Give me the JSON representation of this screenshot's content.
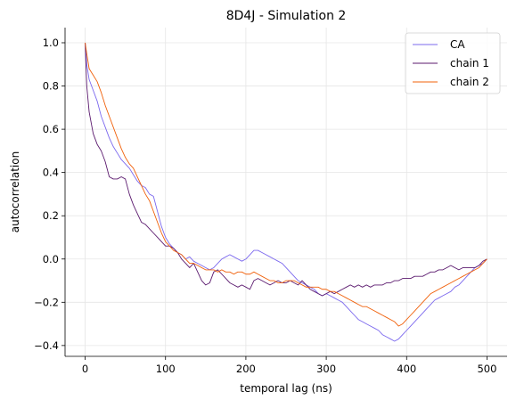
{
  "chart_data": {
    "type": "line",
    "title": "8D4J - Simulation 2",
    "xlabel": "temporal lag (ns)",
    "ylabel": "autocorrelation",
    "xlim": [
      -25,
      525
    ],
    "ylim": [
      -0.45,
      1.07
    ],
    "xticks": [
      0,
      100,
      200,
      300,
      400,
      500
    ],
    "yticks": [
      -0.4,
      -0.2,
      0.0,
      0.2,
      0.4,
      0.6,
      0.8,
      1.0
    ],
    "xtick_labels": [
      "0",
      "100",
      "200",
      "300",
      "400",
      "500"
    ],
    "ytick_labels": [
      "−0.4",
      "−0.2",
      "0.0",
      "0.2",
      "0.4",
      "0.6",
      "0.8",
      "1.0"
    ],
    "grid": true,
    "legend_position": "top-right",
    "series": [
      {
        "name": "CA",
        "color": "#7b68ee",
        "x": [
          0,
          2,
          5,
          10,
          15,
          20,
          25,
          30,
          35,
          40,
          45,
          50,
          55,
          60,
          65,
          70,
          75,
          80,
          85,
          90,
          95,
          100,
          105,
          110,
          115,
          120,
          125,
          130,
          135,
          140,
          145,
          150,
          155,
          160,
          165,
          170,
          175,
          180,
          185,
          190,
          195,
          200,
          205,
          210,
          215,
          220,
          225,
          230,
          235,
          240,
          245,
          250,
          255,
          260,
          265,
          270,
          275,
          280,
          285,
          290,
          295,
          300,
          305,
          310,
          315,
          320,
          325,
          330,
          335,
          340,
          345,
          350,
          355,
          360,
          365,
          370,
          375,
          380,
          385,
          390,
          395,
          400,
          405,
          410,
          415,
          420,
          425,
          430,
          435,
          440,
          445,
          450,
          455,
          460,
          465,
          470,
          475,
          480,
          485,
          490,
          495,
          500
        ],
        "values": [
          1.0,
          0.9,
          0.83,
          0.78,
          0.73,
          0.66,
          0.61,
          0.56,
          0.52,
          0.49,
          0.46,
          0.44,
          0.42,
          0.39,
          0.36,
          0.34,
          0.33,
          0.3,
          0.29,
          0.22,
          0.15,
          0.1,
          0.07,
          0.05,
          0.03,
          0.02,
          0.0,
          0.01,
          -0.01,
          -0.02,
          -0.03,
          -0.04,
          -0.05,
          -0.04,
          -0.02,
          0.0,
          0.01,
          0.02,
          0.01,
          0.0,
          -0.01,
          0.0,
          0.02,
          0.04,
          0.04,
          0.03,
          0.02,
          0.01,
          0.0,
          -0.01,
          -0.02,
          -0.04,
          -0.06,
          -0.08,
          -0.1,
          -0.11,
          -0.12,
          -0.13,
          -0.14,
          -0.16,
          -0.17,
          -0.16,
          -0.17,
          -0.18,
          -0.19,
          -0.2,
          -0.22,
          -0.24,
          -0.26,
          -0.28,
          -0.29,
          -0.3,
          -0.31,
          -0.32,
          -0.33,
          -0.35,
          -0.36,
          -0.37,
          -0.38,
          -0.37,
          -0.35,
          -0.33,
          -0.31,
          -0.29,
          -0.27,
          -0.25,
          -0.23,
          -0.21,
          -0.19,
          -0.18,
          -0.17,
          -0.16,
          -0.15,
          -0.13,
          -0.12,
          -0.1,
          -0.08,
          -0.06,
          -0.04,
          -0.03,
          -0.02,
          0.0
        ]
      },
      {
        "name": "chain 1",
        "color": "#5b1a6e",
        "x": [
          0,
          2,
          5,
          10,
          15,
          20,
          25,
          30,
          35,
          40,
          45,
          50,
          55,
          60,
          65,
          70,
          75,
          80,
          85,
          90,
          95,
          100,
          105,
          110,
          115,
          120,
          125,
          130,
          135,
          140,
          145,
          150,
          155,
          160,
          165,
          170,
          175,
          180,
          185,
          190,
          195,
          200,
          205,
          210,
          215,
          220,
          225,
          230,
          235,
          240,
          245,
          250,
          255,
          260,
          265,
          270,
          275,
          280,
          285,
          290,
          295,
          300,
          305,
          310,
          315,
          320,
          325,
          330,
          335,
          340,
          345,
          350,
          355,
          360,
          365,
          370,
          375,
          380,
          385,
          390,
          395,
          400,
          405,
          410,
          415,
          420,
          425,
          430,
          435,
          440,
          445,
          450,
          455,
          460,
          465,
          470,
          475,
          480,
          485,
          490,
          495,
          500
        ],
        "values": [
          1.0,
          0.8,
          0.68,
          0.58,
          0.53,
          0.5,
          0.45,
          0.38,
          0.37,
          0.37,
          0.38,
          0.37,
          0.3,
          0.25,
          0.21,
          0.17,
          0.16,
          0.14,
          0.12,
          0.1,
          0.08,
          0.06,
          0.06,
          0.05,
          0.03,
          0.0,
          -0.02,
          -0.04,
          -0.02,
          -0.06,
          -0.1,
          -0.12,
          -0.11,
          -0.06,
          -0.05,
          -0.07,
          -0.09,
          -0.11,
          -0.12,
          -0.13,
          -0.12,
          -0.13,
          -0.14,
          -0.1,
          -0.09,
          -0.1,
          -0.11,
          -0.12,
          -0.11,
          -0.1,
          -0.11,
          -0.11,
          -0.1,
          -0.11,
          -0.12,
          -0.1,
          -0.12,
          -0.14,
          -0.15,
          -0.16,
          -0.17,
          -0.16,
          -0.15,
          -0.16,
          -0.15,
          -0.14,
          -0.13,
          -0.12,
          -0.13,
          -0.12,
          -0.13,
          -0.12,
          -0.13,
          -0.12,
          -0.12,
          -0.12,
          -0.11,
          -0.11,
          -0.1,
          -0.1,
          -0.09,
          -0.09,
          -0.09,
          -0.08,
          -0.08,
          -0.08,
          -0.07,
          -0.06,
          -0.06,
          -0.05,
          -0.05,
          -0.04,
          -0.03,
          -0.04,
          -0.05,
          -0.04,
          -0.04,
          -0.04,
          -0.04,
          -0.03,
          -0.01,
          0.0
        ]
      },
      {
        "name": "chain 2",
        "color": "#f0600a",
        "x": [
          0,
          2,
          5,
          10,
          15,
          20,
          25,
          30,
          35,
          40,
          45,
          50,
          55,
          60,
          65,
          70,
          75,
          80,
          85,
          90,
          95,
          100,
          105,
          110,
          115,
          120,
          125,
          130,
          135,
          140,
          145,
          150,
          155,
          160,
          165,
          170,
          175,
          180,
          185,
          190,
          195,
          200,
          205,
          210,
          215,
          220,
          225,
          230,
          235,
          240,
          245,
          250,
          255,
          260,
          265,
          270,
          275,
          280,
          285,
          290,
          295,
          300,
          305,
          310,
          315,
          320,
          325,
          330,
          335,
          340,
          345,
          350,
          355,
          360,
          365,
          370,
          375,
          380,
          385,
          390,
          395,
          400,
          405,
          410,
          415,
          420,
          425,
          430,
          435,
          440,
          445,
          450,
          455,
          460,
          465,
          470,
          475,
          480,
          485,
          490,
          495,
          500
        ],
        "values": [
          1.0,
          0.95,
          0.88,
          0.85,
          0.82,
          0.77,
          0.71,
          0.66,
          0.61,
          0.56,
          0.51,
          0.47,
          0.44,
          0.42,
          0.38,
          0.34,
          0.3,
          0.27,
          0.22,
          0.17,
          0.12,
          0.08,
          0.06,
          0.04,
          0.03,
          0.02,
          0.0,
          -0.02,
          -0.02,
          -0.03,
          -0.04,
          -0.05,
          -0.05,
          -0.05,
          -0.06,
          -0.05,
          -0.06,
          -0.06,
          -0.07,
          -0.06,
          -0.06,
          -0.07,
          -0.07,
          -0.06,
          -0.07,
          -0.08,
          -0.09,
          -0.1,
          -0.1,
          -0.11,
          -0.11,
          -0.1,
          -0.1,
          -0.1,
          -0.11,
          -0.12,
          -0.13,
          -0.13,
          -0.13,
          -0.13,
          -0.14,
          -0.14,
          -0.15,
          -0.15,
          -0.16,
          -0.17,
          -0.18,
          -0.19,
          -0.2,
          -0.21,
          -0.22,
          -0.22,
          -0.23,
          -0.24,
          -0.25,
          -0.26,
          -0.27,
          -0.28,
          -0.29,
          -0.31,
          -0.3,
          -0.28,
          -0.26,
          -0.24,
          -0.22,
          -0.2,
          -0.18,
          -0.16,
          -0.15,
          -0.14,
          -0.13,
          -0.12,
          -0.11,
          -0.1,
          -0.09,
          -0.08,
          -0.07,
          -0.06,
          -0.05,
          -0.04,
          -0.02,
          0.0
        ]
      }
    ]
  }
}
